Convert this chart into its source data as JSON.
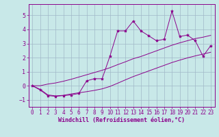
{
  "xlabel": "Windchill (Refroidissement éolien,°C)",
  "x_data": [
    0,
    1,
    2,
    3,
    4,
    5,
    6,
    7,
    8,
    9,
    10,
    11,
    12,
    13,
    14,
    15,
    16,
    17,
    18,
    19,
    20,
    21,
    22,
    23
  ],
  "y_main": [
    0,
    -0.3,
    -0.7,
    -0.75,
    -0.7,
    -0.65,
    -0.55,
    0.35,
    0.5,
    0.5,
    2.1,
    3.9,
    3.9,
    4.6,
    3.9,
    3.55,
    3.2,
    3.3,
    5.3,
    3.5,
    3.6,
    3.2,
    2.1,
    2.85
  ],
  "y_low": [
    0,
    -0.25,
    -0.65,
    -0.72,
    -0.68,
    -0.58,
    -0.5,
    -0.42,
    -0.33,
    -0.22,
    -0.05,
    0.18,
    0.42,
    0.65,
    0.85,
    1.05,
    1.25,
    1.45,
    1.65,
    1.82,
    1.98,
    2.12,
    2.25,
    2.38
  ],
  "y_high": [
    0,
    0.0,
    0.12,
    0.2,
    0.32,
    0.46,
    0.62,
    0.78,
    0.94,
    1.1,
    1.28,
    1.5,
    1.7,
    1.92,
    2.08,
    2.28,
    2.48,
    2.68,
    2.88,
    3.05,
    3.2,
    3.35,
    3.45,
    3.58
  ],
  "line_color": "#8b008b",
  "bg_color": "#c8e8e8",
  "grid_color": "#a0b8c8",
  "ylim": [
    -1.5,
    5.8
  ],
  "xlim": [
    -0.5,
    23.5
  ],
  "yticks": [
    -1,
    0,
    1,
    2,
    3,
    4,
    5
  ],
  "xticks": [
    0,
    1,
    2,
    3,
    4,
    5,
    6,
    7,
    8,
    9,
    10,
    11,
    12,
    13,
    14,
    15,
    16,
    17,
    18,
    19,
    20,
    21,
    22,
    23
  ],
  "tick_fontsize": 5.5,
  "label_fontsize": 6.0
}
